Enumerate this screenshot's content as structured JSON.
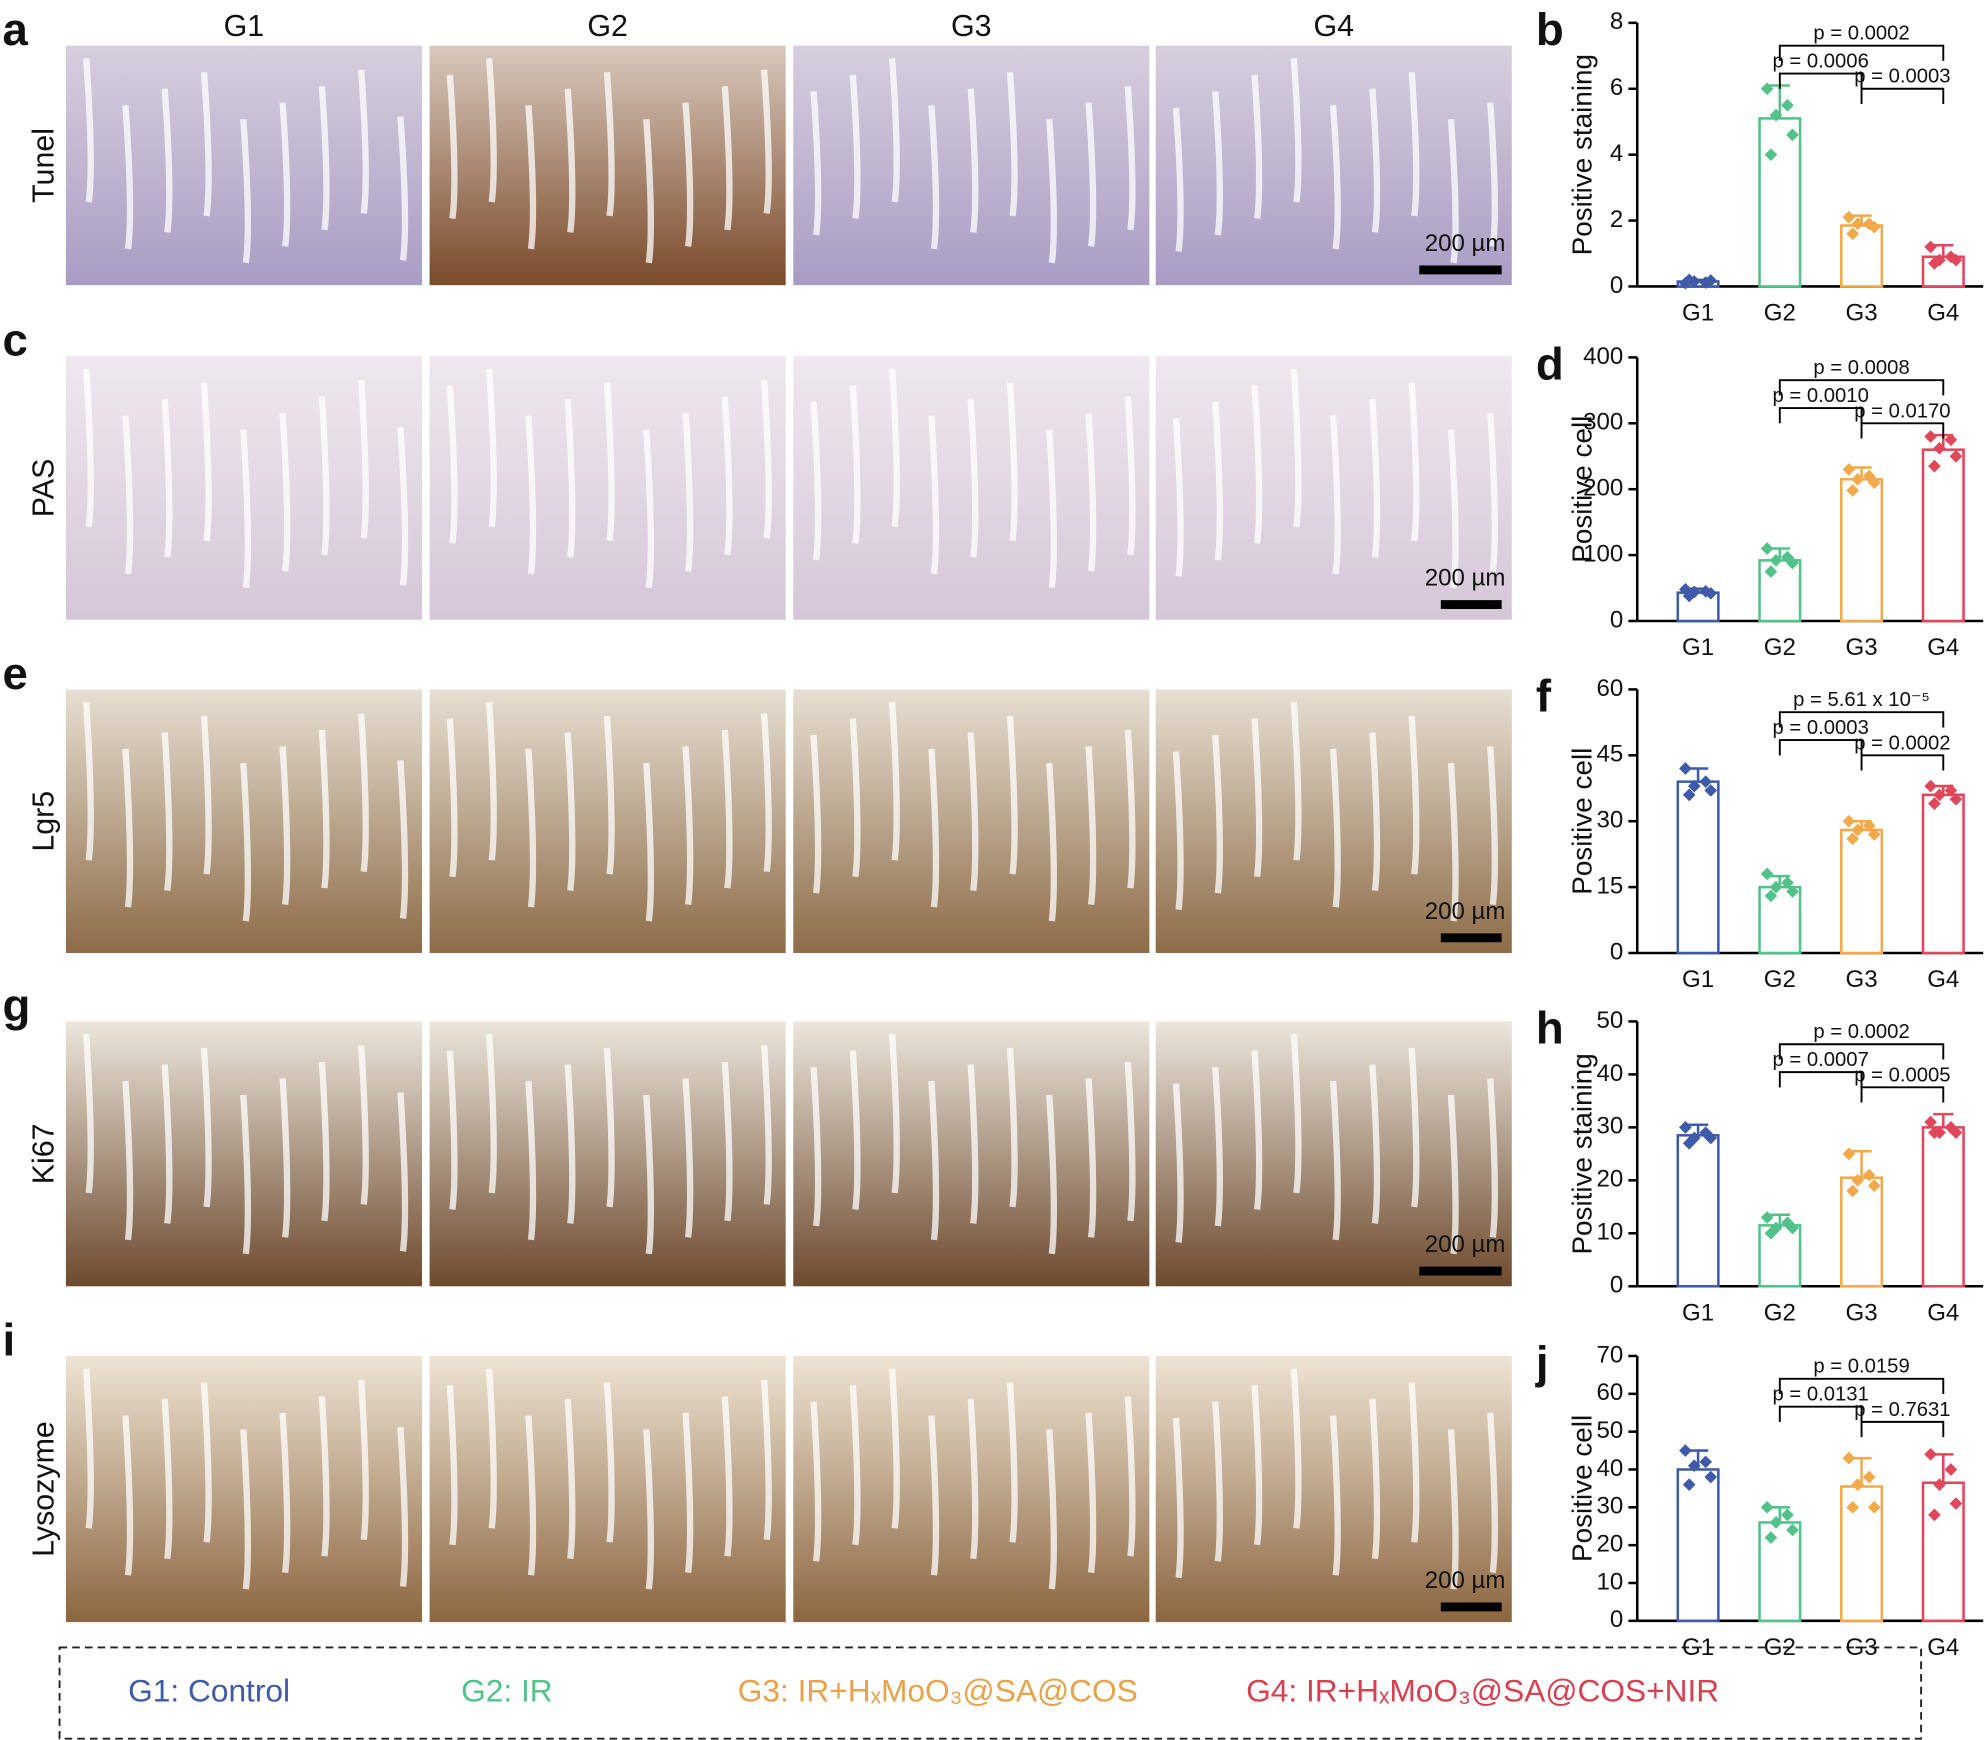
{
  "panel_labels": [
    "a",
    "c",
    "e",
    "g",
    "i"
  ],
  "column_headers": [
    "G1",
    "G2",
    "G3",
    "G4"
  ],
  "row_labels": [
    "Tunel",
    "PAS",
    "Lgr5",
    "Ki67",
    "Lysozyme"
  ],
  "scale_bars": [
    "200 µm",
    "200 µm",
    "200 µm",
    "200 µm",
    "200 µm"
  ],
  "chart_data": [
    {
      "type": "bar",
      "panel": "b",
      "ylabel": "Positive staining",
      "categories": [
        "G1",
        "G2",
        "G3",
        "G4"
      ],
      "colors": [
        "#3f5aa8",
        "#52c28a",
        "#f2a94a",
        "#e0475a"
      ],
      "values": [
        0.15,
        5.1,
        1.85,
        0.9
      ],
      "errors": [
        0.05,
        1.0,
        0.3,
        0.35
      ],
      "points": [
        [
          0.1,
          0.12,
          0.15,
          0.18,
          0.2
        ],
        [
          6.0,
          5.5,
          5.2,
          4.6,
          4.0
        ],
        [
          2.1,
          1.9,
          1.9,
          1.8,
          1.6
        ],
        [
          1.2,
          0.9,
          0.8,
          0.8,
          0.7
        ]
      ],
      "ylim": [
        0,
        8
      ],
      "yticks": [
        0,
        2,
        4,
        6,
        8
      ],
      "comparisons": [
        {
          "text": "p = 0.0002",
          "groups": [
            "G2",
            "G4"
          ]
        },
        {
          "text": "p = 0.0006",
          "groups": [
            "G2",
            "G3"
          ]
        },
        {
          "text": "p = 0.0003",
          "groups": [
            "G3",
            "G4"
          ]
        }
      ]
    },
    {
      "type": "bar",
      "panel": "d",
      "ylabel": "Positive cell",
      "categories": [
        "G1",
        "G2",
        "G3",
        "G4"
      ],
      "colors": [
        "#3f5aa8",
        "#52c28a",
        "#f2a94a",
        "#e0475a"
      ],
      "values": [
        43,
        92,
        215,
        260
      ],
      "errors": [
        6,
        18,
        18,
        22
      ],
      "points": [
        [
          48,
          45,
          44,
          42,
          38
        ],
        [
          110,
          97,
          92,
          88,
          75
        ],
        [
          230,
          220,
          215,
          210,
          198
        ],
        [
          280,
          275,
          262,
          250,
          235
        ]
      ],
      "ylim": [
        0,
        400
      ],
      "yticks": [
        0,
        100,
        200,
        300,
        400
      ],
      "comparisons": [
        {
          "text": "p = 0.0008",
          "groups": [
            "G2",
            "G4"
          ]
        },
        {
          "text": "p = 0.0010",
          "groups": [
            "G2",
            "G3"
          ]
        },
        {
          "text": "p = 0.0170",
          "groups": [
            "G3",
            "G4"
          ]
        }
      ]
    },
    {
      "type": "bar",
      "panel": "f",
      "ylabel": "Positive cell",
      "categories": [
        "G1",
        "G2",
        "G3",
        "G4"
      ],
      "colors": [
        "#3f5aa8",
        "#52c28a",
        "#f2a94a",
        "#e0475a"
      ],
      "values": [
        39,
        15,
        28,
        36
      ],
      "errors": [
        3,
        2.5,
        2,
        2
      ],
      "points": [
        [
          42,
          39,
          38,
          37,
          36
        ],
        [
          18,
          16,
          15,
          14,
          13
        ],
        [
          30,
          29,
          28,
          27,
          26
        ],
        [
          38,
          37,
          36,
          35,
          34
        ]
      ],
      "ylim": [
        0,
        60
      ],
      "yticks": [
        0,
        15,
        30,
        45,
        60
      ],
      "comparisons": [
        {
          "text": "p = 5.61 x 10⁻⁵",
          "groups": [
            "G2",
            "G4"
          ]
        },
        {
          "text": "p = 0.0003",
          "groups": [
            "G2",
            "G3"
          ]
        },
        {
          "text": "p = 0.0002",
          "groups": [
            "G3",
            "G4"
          ]
        }
      ]
    },
    {
      "type": "bar",
      "panel": "h",
      "ylabel": "Positive staining",
      "categories": [
        "G1",
        "G2",
        "G3",
        "G4"
      ],
      "colors": [
        "#3f5aa8",
        "#52c28a",
        "#f2a94a",
        "#e0475a"
      ],
      "values": [
        28.5,
        11.5,
        20.5,
        30
      ],
      "errors": [
        2,
        2,
        5,
        2.5
      ],
      "points": [
        [
          30,
          29,
          28,
          28,
          27
        ],
        [
          13,
          12,
          11,
          11,
          10
        ],
        [
          25,
          21,
          20,
          19,
          18
        ],
        [
          31,
          30,
          29,
          29,
          29
        ]
      ],
      "ylim": [
        0,
        50
      ],
      "yticks": [
        0,
        10,
        20,
        30,
        40,
        50
      ],
      "comparisons": [
        {
          "text": "p = 0.0002",
          "groups": [
            "G2",
            "G4"
          ]
        },
        {
          "text": "p = 0.0007",
          "groups": [
            "G2",
            "G3"
          ]
        },
        {
          "text": "p = 0.0005",
          "groups": [
            "G3",
            "G4"
          ]
        }
      ]
    },
    {
      "type": "bar",
      "panel": "j",
      "ylabel": "Positive cell",
      "categories": [
        "G1",
        "G2",
        "G3",
        "G4"
      ],
      "colors": [
        "#3f5aa8",
        "#52c28a",
        "#f2a94a",
        "#e0475a"
      ],
      "values": [
        40,
        26,
        35.5,
        36.5
      ],
      "errors": [
        5,
        4,
        7.5,
        7.5
      ],
      "points": [
        [
          45,
          42,
          41,
          38,
          36
        ],
        [
          30,
          28,
          26,
          24,
          22
        ],
        [
          43,
          38,
          36,
          30,
          30
        ],
        [
          44,
          40,
          36,
          31,
          28
        ]
      ],
      "ylim": [
        0,
        70
      ],
      "yticks": [
        0,
        10,
        20,
        30,
        40,
        50,
        60,
        70
      ],
      "comparisons": [
        {
          "text": "p = 0.0159",
          "groups": [
            "G2",
            "G4"
          ]
        },
        {
          "text": "p = 0.0131",
          "groups": [
            "G2",
            "G3"
          ]
        },
        {
          "text": "p = 0.7631",
          "groups": [
            "G3",
            "G4"
          ]
        }
      ]
    }
  ],
  "legend": [
    {
      "text": "G1: Control",
      "color": "#3f5aa8"
    },
    {
      "text": "G2: IR",
      "color": "#52c28a"
    },
    {
      "text": "G3: IR+HₓMoO₃@SA@COS",
      "color": "#e8a24a"
    },
    {
      "text": "G4: IR+HₓMoO₃@SA@COS+NIR",
      "color": "#d9404f"
    }
  ]
}
